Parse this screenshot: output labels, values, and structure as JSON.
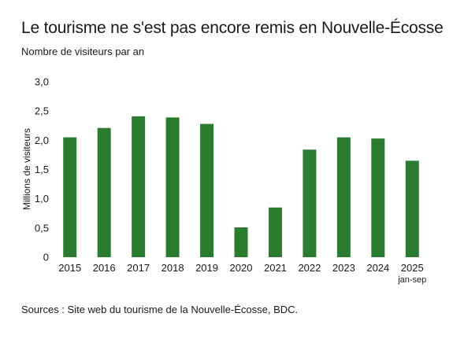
{
  "chart_data": {
    "type": "bar",
    "title": "Le tourisme ne s'est pas encore remis en Nouvelle-Écosse",
    "subtitle": "Nombre de visiteurs par an",
    "ylabel": "Millions de visiteurs",
    "xlabel": "",
    "categories": [
      "2015",
      "2016",
      "2017",
      "2018",
      "2019",
      "2020",
      "2021",
      "2022",
      "2023",
      "2024",
      "2025"
    ],
    "category_notes": [
      "",
      "",
      "",
      "",
      "",
      "",
      "",
      "",
      "",
      "",
      "jan-sep"
    ],
    "values": [
      2.05,
      2.21,
      2.41,
      2.39,
      2.28,
      0.51,
      0.85,
      1.84,
      2.05,
      2.03,
      1.65
    ],
    "ylim": [
      0,
      3.0
    ],
    "yticks": [
      "0",
      "0,5",
      "1,0",
      "1,5",
      "2,0",
      "2,5",
      "3,0"
    ],
    "ytick_values": [
      0,
      0.5,
      1.0,
      1.5,
      2.0,
      2.5,
      3.0
    ],
    "bar_color": "#2a7d2e",
    "grid": false,
    "legend": "none",
    "source": "Sources : Site web du tourisme de la Nouvelle-Écosse, BDC."
  }
}
